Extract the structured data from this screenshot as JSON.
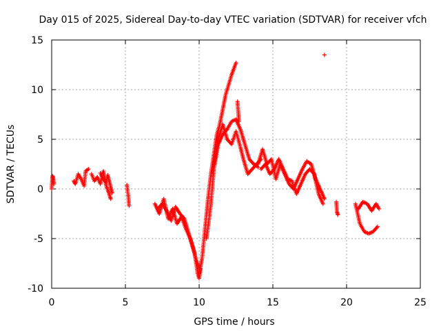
{
  "chart_data": {
    "type": "scatter",
    "title": "Day 015 of 2025, Sidereal Day-to-day VTEC variation (SDTVAR) for receiver vfch",
    "xlabel": "GPS time / hours",
    "ylabel": "SDTVAR / TECUs",
    "xlim": [
      0,
      25
    ],
    "ylim": [
      -10,
      15
    ],
    "xticks": [
      0,
      5,
      10,
      15,
      20,
      25
    ],
    "yticks": [
      -10,
      -5,
      0,
      5,
      10,
      15
    ],
    "grid": true,
    "marker": "+",
    "legend": "none",
    "colors": {
      "series": "#ff0000",
      "grid": "#a0a0a0",
      "axis": "#000000"
    },
    "series": [
      {
        "name": "trace-a",
        "x": [
          0.0,
          0.05,
          0.1,
          0.15
        ],
        "y": [
          0.0,
          1.3,
          1.2,
          0.5
        ]
      },
      {
        "name": "trace-b",
        "x": [
          1.5,
          1.6,
          1.8,
          2.0,
          2.2,
          2.3,
          2.5
        ],
        "y": [
          0.8,
          0.5,
          1.5,
          1.0,
          0.3,
          1.8,
          2.0
        ]
      },
      {
        "name": "trace-c",
        "x": [
          2.7,
          2.9,
          3.1,
          3.3,
          3.5,
          3.7,
          3.9,
          4.0
        ],
        "y": [
          1.5,
          0.8,
          1.2,
          0.5,
          1.8,
          0.3,
          -0.5,
          -1.0
        ]
      },
      {
        "name": "trace-d",
        "x": [
          3.3,
          3.5,
          3.7,
          3.8,
          4.0,
          4.1
        ],
        "y": [
          1.6,
          1.0,
          0.6,
          1.4,
          0.2,
          -0.4
        ]
      },
      {
        "name": "trace-e",
        "x": [
          5.1,
          5.2,
          5.25
        ],
        "y": [
          0.4,
          -0.8,
          -1.7
        ]
      },
      {
        "name": "trace-f",
        "x": [
          7.0,
          7.3,
          7.6,
          7.9,
          8.2,
          8.5,
          8.8,
          9.1,
          9.4,
          9.7,
          9.9,
          10.0,
          10.1
        ],
        "y": [
          -1.5,
          -2.5,
          -1.0,
          -3.0,
          -2.0,
          -3.5,
          -2.8,
          -4.0,
          -5.0,
          -6.5,
          -8.5,
          -9.0,
          -8.0
        ]
      },
      {
        "name": "trace-g",
        "x": [
          7.2,
          7.5,
          7.8,
          8.1,
          8.4,
          8.7,
          9.0,
          9.3,
          9.6,
          9.8,
          10.0
        ],
        "y": [
          -2.0,
          -1.5,
          -2.2,
          -3.2,
          -1.8,
          -2.5,
          -3.0,
          -4.5,
          -6.0,
          -7.2,
          -8.0
        ]
      },
      {
        "name": "trace-h",
        "x": [
          10.0,
          10.2,
          10.4,
          10.6,
          10.8,
          11.0,
          11.2,
          11.4,
          11.6,
          11.8,
          12.0,
          12.2,
          12.4,
          12.5
        ],
        "y": [
          -8.5,
          -7.0,
          -4.0,
          -1.0,
          1.5,
          3.5,
          5.5,
          6.5,
          8.0,
          9.5,
          10.5,
          11.5,
          12.3,
          12.7
        ]
      },
      {
        "name": "trace-i",
        "x": [
          10.5,
          10.8,
          11.0,
          11.3,
          11.6,
          11.9,
          12.2,
          12.5,
          12.8,
          13.1,
          13.4,
          13.7,
          14.0
        ],
        "y": [
          -5.0,
          -1.5,
          2.0,
          4.5,
          5.5,
          6.0,
          6.8,
          7.0,
          6.0,
          4.5,
          3.0,
          2.5,
          2.2
        ]
      },
      {
        "name": "trace-j",
        "x": [
          11.0,
          11.3,
          11.6,
          11.9,
          12.2,
          12.5,
          12.8,
          13.0,
          13.3,
          13.6,
          13.9,
          14.2
        ],
        "y": [
          2.5,
          5.0,
          6.5,
          5.0,
          4.5,
          5.8,
          4.2,
          3.0,
          1.5,
          2.0,
          2.5,
          3.0
        ]
      },
      {
        "name": "trace-k",
        "x": [
          12.6,
          12.65,
          12.7
        ],
        "y": [
          8.8,
          7.8,
          6.8
        ]
      },
      {
        "name": "trace-l",
        "x": [
          14.0,
          14.3,
          14.6,
          14.9,
          15.2,
          15.5,
          15.8,
          16.1,
          16.4,
          16.7,
          17.0,
          17.3,
          17.6,
          17.9,
          18.2,
          18.5
        ],
        "y": [
          2.5,
          4.0,
          2.5,
          3.0,
          1.0,
          2.5,
          1.5,
          0.5,
          0.0,
          1.0,
          2.0,
          2.8,
          2.5,
          1.0,
          0.0,
          -1.0
        ]
      },
      {
        "name": "trace-m",
        "x": [
          14.2,
          14.5,
          14.8,
          15.1,
          15.4,
          15.7,
          16.0,
          16.3,
          16.6,
          16.9,
          17.2,
          17.5,
          17.8,
          18.1,
          18.4
        ],
        "y": [
          2.0,
          2.5,
          1.5,
          2.0,
          3.0,
          2.0,
          1.0,
          0.8,
          -0.5,
          0.5,
          1.5,
          2.0,
          1.5,
          -0.5,
          -1.5
        ]
      },
      {
        "name": "trace-n",
        "x": [
          18.5
        ],
        "y": [
          13.5
        ]
      },
      {
        "name": "trace-o",
        "x": [
          19.3,
          19.35,
          19.4
        ],
        "y": [
          -1.3,
          -2.3,
          -2.6
        ]
      },
      {
        "name": "trace-p",
        "x": [
          20.6,
          20.9,
          21.2,
          21.5,
          21.8,
          22.1
        ],
        "y": [
          -1.5,
          -3.5,
          -4.3,
          -4.5,
          -4.3,
          -3.8
        ]
      },
      {
        "name": "trace-q",
        "x": [
          20.8,
          21.1,
          21.4,
          21.7,
          22.0,
          22.2
        ],
        "y": [
          -2.0,
          -1.3,
          -1.5,
          -2.2,
          -1.5,
          -2.0
        ]
      }
    ]
  }
}
